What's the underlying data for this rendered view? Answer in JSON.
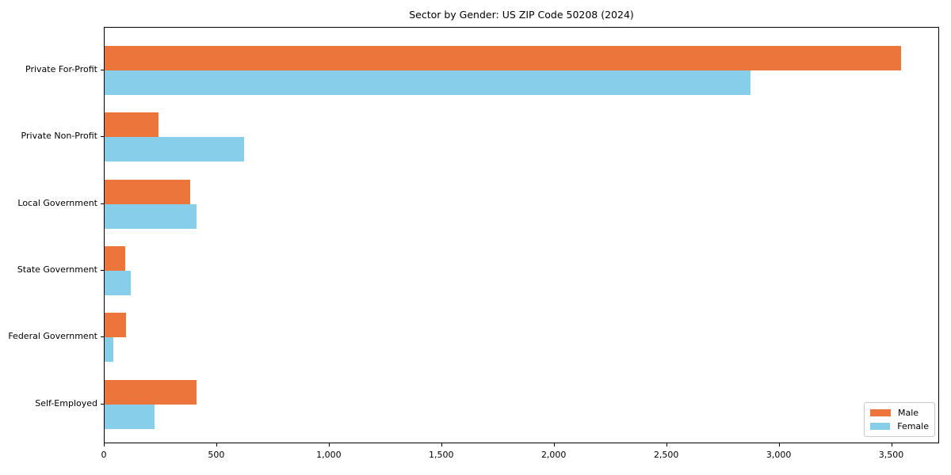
{
  "chart_data": {
    "type": "bar",
    "orientation": "horizontal",
    "title": "Sector by Gender: US ZIP Code 50208 (2024)",
    "xlabel": "",
    "ylabel": "",
    "categories": [
      "Private For-Profit",
      "Private Non-Profit",
      "Local Government",
      "State Government",
      "Federal Government",
      "Self-Employed"
    ],
    "series": [
      {
        "name": "Male",
        "color": "#ec753b",
        "values": [
          3540,
          240,
          380,
          90,
          95,
          410
        ]
      },
      {
        "name": "Female",
        "color": "#87ceeb",
        "values": [
          2870,
          620,
          410,
          115,
          40,
          220
        ]
      }
    ],
    "xlim": [
      0,
      3713
    ],
    "xticks": [
      0,
      500,
      1000,
      1500,
      2000,
      2500,
      3000,
      3500
    ],
    "xtick_labels": [
      "0",
      "500",
      "1,000",
      "1,500",
      "2,000",
      "2,500",
      "3,000",
      "3,500"
    ],
    "grid": false,
    "legend": {
      "position": "lower right"
    },
    "colors": {
      "spine": "#000000",
      "background": "#ffffff"
    }
  }
}
